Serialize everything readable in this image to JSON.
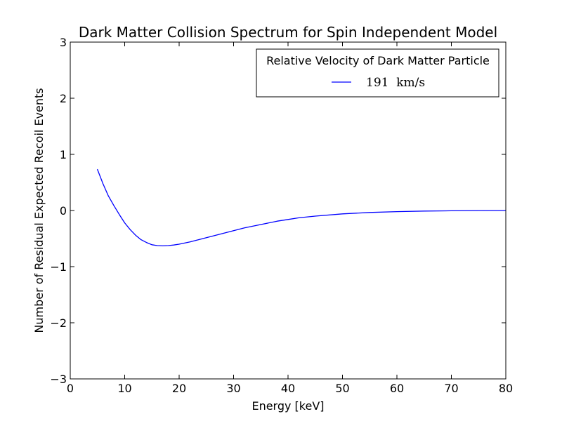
{
  "chart_data": {
    "type": "line",
    "title": "Dark Matter Collision Spectrum for Spin Independent Model",
    "xlabel": "Energy [keV]",
    "ylabel": "Number of Residual Expected Recoil Events",
    "xlim": [
      0,
      80
    ],
    "ylim": [
      -3,
      3
    ],
    "xticks": [
      0,
      10,
      20,
      30,
      40,
      50,
      60,
      70,
      80
    ],
    "xtick_labels": [
      "0",
      "10",
      "20",
      "30",
      "40",
      "50",
      "60",
      "70",
      "80"
    ],
    "yticks": [
      -3,
      -2,
      -1,
      0,
      1,
      2,
      3
    ],
    "ytick_labels": [
      "−3",
      "−2",
      "−1",
      "0",
      "1",
      "2",
      "3"
    ],
    "grid": false,
    "legend": {
      "title": "Relative Velocity of Dark Matter Particle",
      "placement": "top-right"
    },
    "series": [
      {
        "name": "191  km/s",
        "color": "#0000ff",
        "x": [
          5,
          6,
          7,
          8,
          9,
          10,
          11,
          12,
          13,
          14,
          15,
          16,
          17,
          18,
          19,
          20,
          22,
          24,
          26,
          28,
          30,
          32,
          35,
          38,
          40,
          42,
          45,
          50,
          55,
          60,
          65,
          70,
          75,
          80
        ],
        "y": [
          0.73,
          0.48,
          0.26,
          0.09,
          -0.07,
          -0.22,
          -0.34,
          -0.44,
          -0.52,
          -0.57,
          -0.61,
          -0.625,
          -0.63,
          -0.625,
          -0.615,
          -0.6,
          -0.56,
          -0.51,
          -0.46,
          -0.41,
          -0.36,
          -0.31,
          -0.25,
          -0.19,
          -0.16,
          -0.13,
          -0.1,
          -0.06,
          -0.035,
          -0.02,
          -0.01,
          -0.005,
          -0.002,
          0.0
        ]
      }
    ]
  }
}
